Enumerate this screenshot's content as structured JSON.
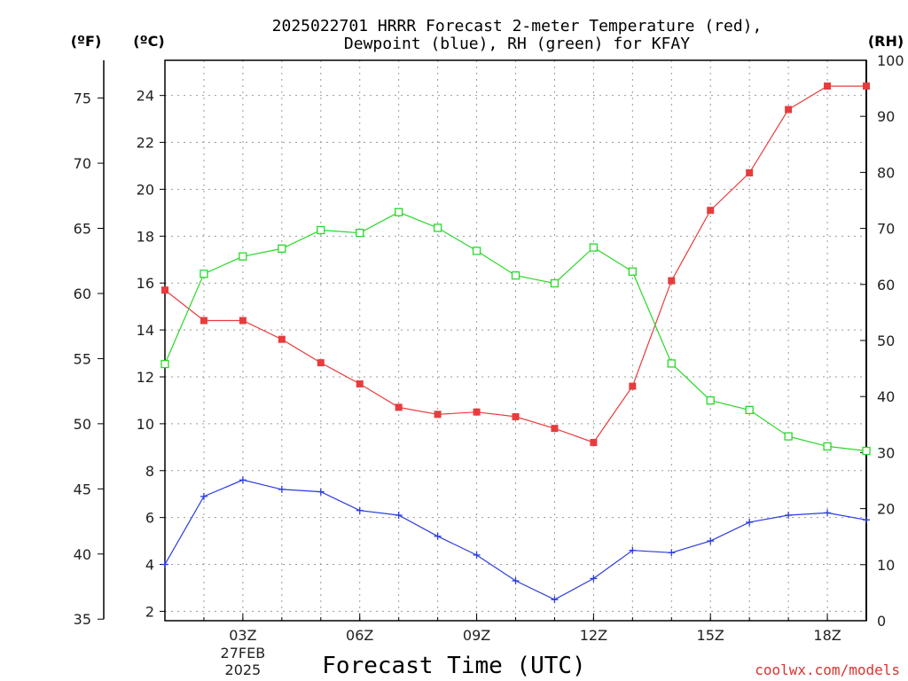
{
  "chart_data": {
    "type": "line",
    "title_line1": "2025022701 HRRR Forecast 2-meter Temperature (red),",
    "title_line2": "Dewpoint (blue), RH (green) for KFAY",
    "xlabel": "Forecast Time (UTC)",
    "credit": "coolwx.com/models",
    "units": {
      "fahrenheit": "(ºF)",
      "celsius": "(ºC)",
      "rh": "(RH)"
    },
    "x_hours": [
      1,
      2,
      3,
      4,
      5,
      6,
      7,
      8,
      9,
      10,
      11,
      12,
      13,
      14,
      15,
      16,
      17,
      18,
      19
    ],
    "xlim": [
      1,
      19
    ],
    "x_ticks": [
      {
        "hour": 3,
        "label": "03Z"
      },
      {
        "hour": 6,
        "label": "06Z"
      },
      {
        "hour": 9,
        "label": "09Z"
      },
      {
        "hour": 12,
        "label": "12Z"
      },
      {
        "hour": 15,
        "label": "15Z"
      },
      {
        "hour": 18,
        "label": "18Z"
      }
    ],
    "date_label": {
      "hour": 3,
      "line1": "27FEB",
      "line2": "2025"
    },
    "celsius_axis": {
      "ylim": [
        1.6,
        25.5
      ],
      "ticks": [
        2,
        4,
        6,
        8,
        10,
        12,
        14,
        16,
        18,
        20,
        22,
        24
      ]
    },
    "fahrenheit_axis": {
      "ticks": [
        35,
        40,
        45,
        50,
        55,
        60,
        65,
        70,
        75
      ]
    },
    "rh_axis": {
      "ylim": [
        0,
        100
      ],
      "ticks": [
        0,
        10,
        20,
        30,
        40,
        50,
        60,
        70,
        80,
        90,
        100
      ]
    },
    "series": [
      {
        "name": "Temperature",
        "color": "#e83c3c",
        "marker": "filled-square",
        "axis": "celsius",
        "values": [
          15.7,
          14.4,
          14.4,
          13.6,
          12.6,
          11.7,
          10.7,
          10.4,
          10.5,
          10.3,
          9.8,
          9.2,
          11.6,
          16.1,
          19.1,
          20.7,
          23.4,
          24.4,
          24.4
        ]
      },
      {
        "name": "Dewpoint",
        "color": "#2a3ce0",
        "marker": "plus",
        "axis": "celsius",
        "values": [
          4.0,
          6.9,
          7.6,
          7.2,
          7.1,
          6.3,
          6.1,
          5.2,
          4.4,
          3.3,
          2.5,
          3.4,
          4.6,
          4.5,
          5.0,
          5.8,
          6.1,
          6.2,
          5.9
        ]
      },
      {
        "name": "RH",
        "color": "#28d828",
        "marker": "open-square",
        "axis": "rh",
        "values": [
          45.8,
          61.9,
          65.0,
          66.4,
          69.7,
          69.2,
          72.9,
          70.1,
          66.0,
          61.6,
          60.2,
          66.6,
          62.3,
          45.9,
          39.3,
          37.6,
          32.9,
          31.1,
          30.3
        ]
      }
    ]
  }
}
